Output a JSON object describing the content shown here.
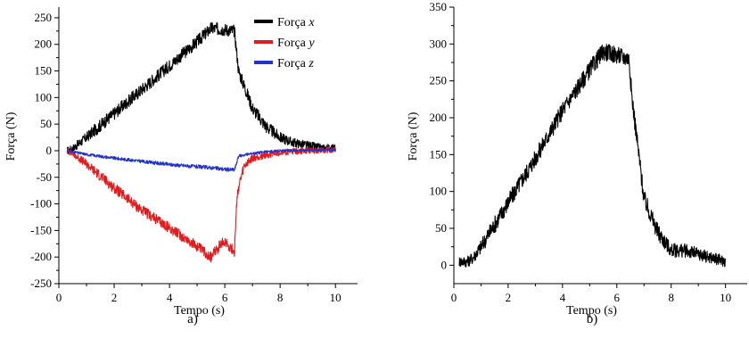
{
  "chart_data": [
    {
      "type": "line",
      "panel_label": "a)",
      "xlabel": "Tempo (s)",
      "ylabel": "Força (N)",
      "xlim": [
        0,
        10.8
      ],
      "ylim": [
        -250,
        270
      ],
      "xticks": [
        0,
        2,
        4,
        6,
        8,
        10
      ],
      "yticks": [
        -250,
        -200,
        -150,
        -100,
        -50,
        0,
        50,
        100,
        150,
        200,
        250
      ],
      "legend_position": "top-right",
      "series": [
        {
          "name": "Força x",
          "color": "#000000",
          "x": [
            0.3,
            0.5,
            1,
            2,
            3,
            4,
            5,
            5.5,
            6.0,
            6.35,
            6.5,
            7,
            7.5,
            8,
            8.5,
            9,
            9.5,
            10
          ],
          "y": [
            0,
            4,
            25,
            70,
            115,
            160,
            205,
            230,
            228,
            225,
            150,
            80,
            45,
            25,
            15,
            10,
            5,
            5
          ],
          "noise": 12
        },
        {
          "name": "Força y",
          "color": "#e41a1c",
          "x": [
            0.3,
            0.5,
            1,
            2,
            3,
            4,
            5,
            5.5,
            5.8,
            6.0,
            6.35,
            6.45,
            6.7,
            7,
            7.5,
            8,
            9,
            10
          ],
          "y": [
            0,
            -5,
            -25,
            -70,
            -112,
            -145,
            -180,
            -200,
            -180,
            -170,
            -190,
            -80,
            -30,
            -15,
            -8,
            -3,
            0,
            2
          ],
          "noise": 10
        },
        {
          "name": "Força z",
          "color": "#2233cc",
          "x": [
            0.3,
            0.5,
            1,
            2,
            3,
            4,
            5,
            5.5,
            6.0,
            6.35,
            6.5,
            7,
            7.5,
            8,
            9,
            10
          ],
          "y": [
            0,
            -2,
            -7,
            -14,
            -20,
            -26,
            -30,
            -32,
            -35,
            -36,
            -10,
            -5,
            -2,
            0,
            1,
            2
          ],
          "noise": 4
        }
      ]
    },
    {
      "type": "line",
      "panel_label": "b)",
      "xlabel": "Tempo (s)",
      "ylabel": "Força (N)",
      "xlim": [
        0,
        10.8
      ],
      "ylim": [
        -25,
        350
      ],
      "xticks": [
        0,
        2,
        4,
        6,
        8,
        10
      ],
      "yticks": [
        0,
        50,
        100,
        150,
        200,
        250,
        300,
        350
      ],
      "series": [
        {
          "name": "",
          "color": "#000000",
          "x": [
            0.2,
            0.5,
            0.7,
            1,
            2,
            3,
            4,
            5,
            5.5,
            6.0,
            6.45,
            6.55,
            7,
            7.5,
            8,
            8.5,
            9,
            9.5,
            10
          ],
          "y": [
            5,
            5,
            10,
            25,
            85,
            145,
            210,
            265,
            290,
            285,
            280,
            230,
            90,
            45,
            20,
            20,
            15,
            10,
            5
          ],
          "noise": 12
        }
      ]
    }
  ]
}
